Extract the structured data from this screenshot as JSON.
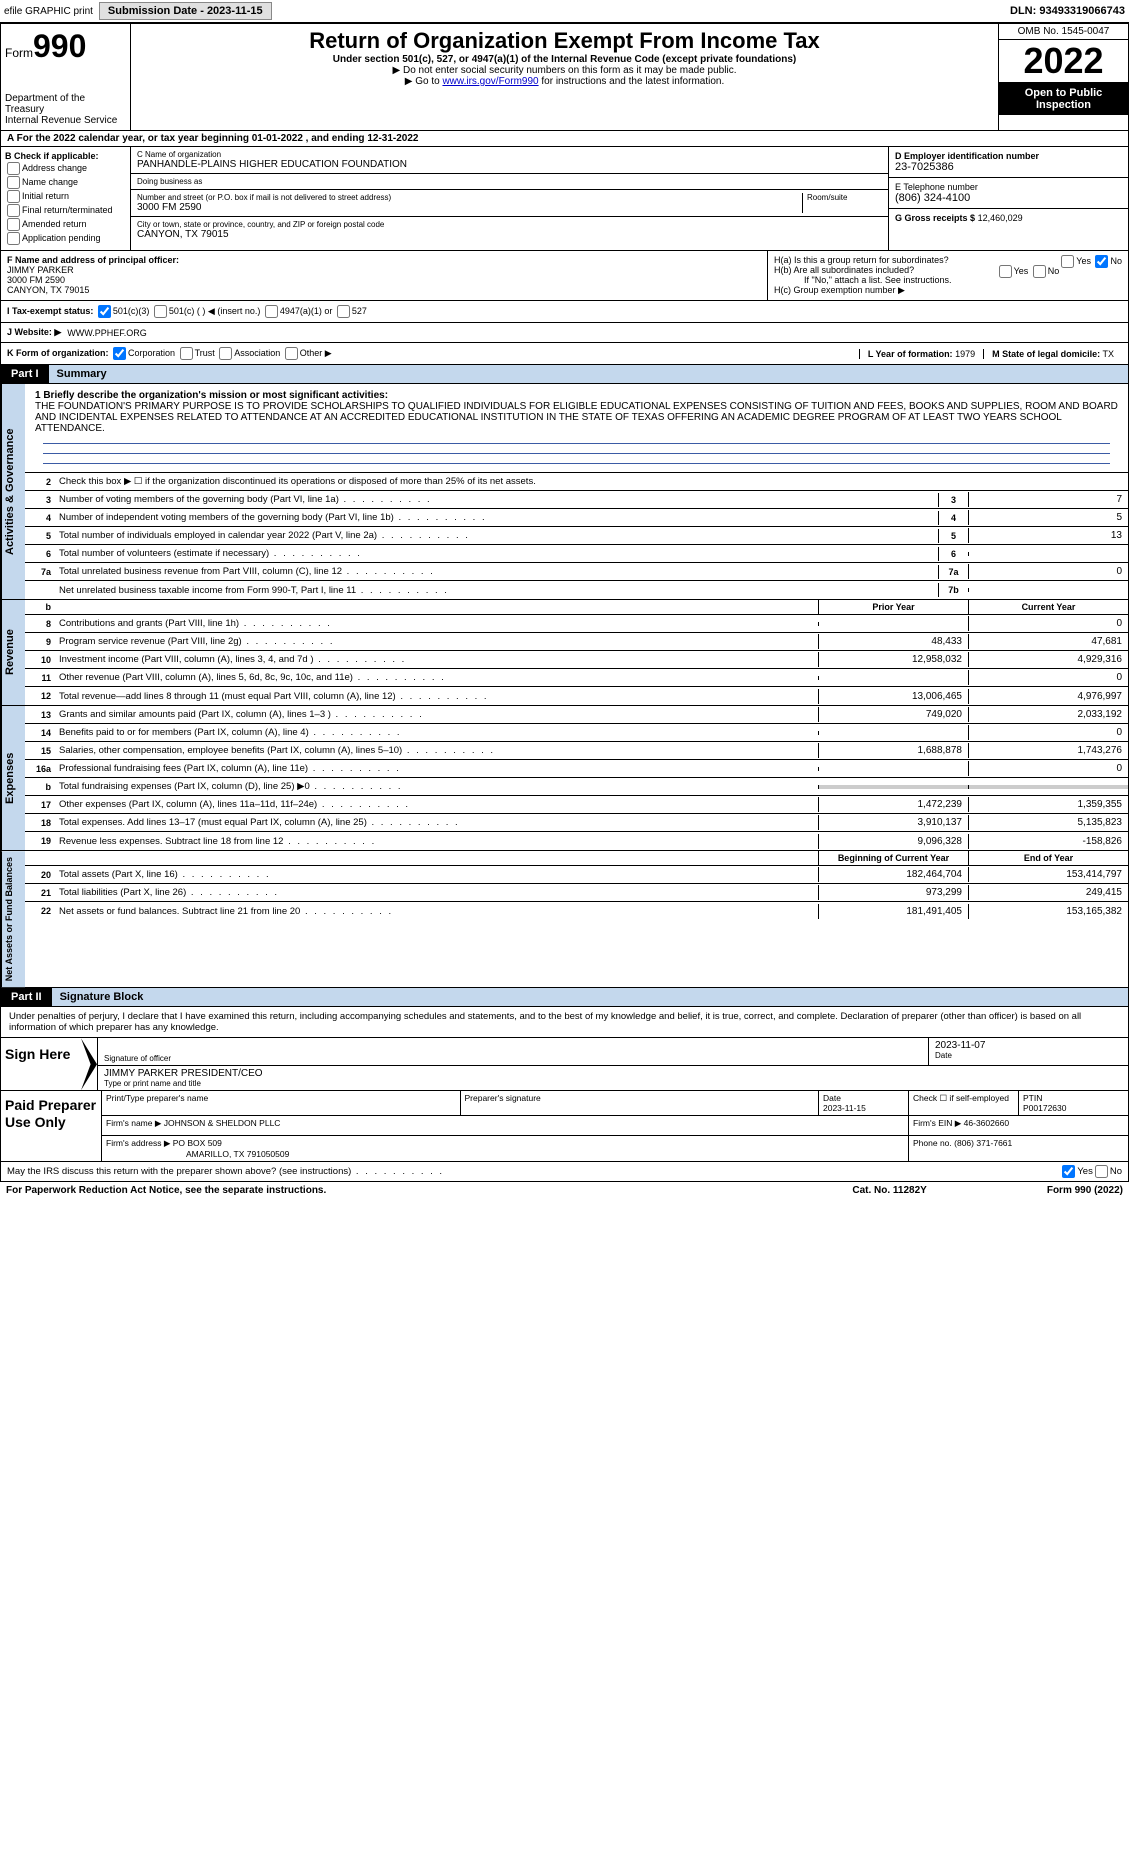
{
  "top": {
    "efile": "efile GRAPHIC print",
    "submission": "Submission Date - 2023-11-15",
    "dln": "DLN: 93493319066743"
  },
  "header": {
    "form_label": "Form",
    "form_num": "990",
    "title": "Return of Organization Exempt From Income Tax",
    "subtitle": "Under section 501(c), 527, or 4947(a)(1) of the Internal Revenue Code (except private foundations)",
    "note1": "▶ Do not enter social security numbers on this form as it may be made public.",
    "note2_pre": "▶ Go to ",
    "note2_link": "www.irs.gov/Form990",
    "note2_post": " for instructions and the latest information.",
    "dept": "Department of the Treasury",
    "irs": "Internal Revenue Service",
    "omb": "OMB No. 1545-0047",
    "year": "2022",
    "open": "Open to Public Inspection"
  },
  "A": "A For the 2022 calendar year, or tax year beginning 01-01-2022   , and ending 12-31-2022",
  "B": {
    "label": "B Check if applicable:",
    "opts": [
      "Address change",
      "Name change",
      "Initial return",
      "Final return/terminated",
      "Amended return",
      "Application pending"
    ]
  },
  "C": {
    "name_lbl": "C Name of organization",
    "name": "PANHANDLE-PLAINS HIGHER EDUCATION FOUNDATION",
    "dba_lbl": "Doing business as",
    "dba": "",
    "street_lbl": "Number and street (or P.O. box if mail is not delivered to street address)",
    "street": "3000 FM 2590",
    "room_lbl": "Room/suite",
    "city_lbl": "City or town, state or province, country, and ZIP or foreign postal code",
    "city": "CANYON, TX  79015"
  },
  "D": {
    "lbl": "D Employer identification number",
    "val": "23-7025386"
  },
  "E": {
    "lbl": "E Telephone number",
    "val": "(806) 324-4100"
  },
  "G": {
    "lbl": "G Gross receipts $",
    "val": "12,460,029"
  },
  "F": {
    "lbl": "F  Name and address of principal officer:",
    "name": "JIMMY PARKER",
    "street": "3000 FM 2590",
    "city": "CANYON, TX  79015"
  },
  "H": {
    "a": "H(a)  Is this a group return for subordinates?",
    "b": "H(b)  Are all subordinates included?",
    "b_note": "If \"No,\" attach a list. See instructions.",
    "c": "H(c)  Group exemption number ▶"
  },
  "I": {
    "lbl": "I    Tax-exempt status:",
    "o1": "501(c)(3)",
    "o2": "501(c) (  ) ◀ (insert no.)",
    "o3": "4947(a)(1) or",
    "o4": "527"
  },
  "J": {
    "lbl": "J   Website: ▶",
    "val": "WWW.PPHEF.ORG"
  },
  "K": {
    "lbl": "K Form of organization:",
    "opts": [
      "Corporation",
      "Trust",
      "Association",
      "Other ▶"
    ]
  },
  "L": {
    "lbl": "L Year of formation:",
    "val": "1979"
  },
  "M": {
    "lbl": "M State of legal domicile:",
    "val": "TX"
  },
  "part1": {
    "hdr": "Part I",
    "title": "Summary"
  },
  "mission": {
    "lbl": "1   Briefly describe the organization's mission or most significant activities:",
    "text": "THE FOUNDATION'S PRIMARY PURPOSE IS TO PROVIDE SCHOLARSHIPS TO QUALIFIED INDIVIDUALS FOR ELIGIBLE EDUCATIONAL EXPENSES CONSISTING OF TUITION AND FEES, BOOKS AND SUPPLIES, ROOM AND BOARD AND INCIDENTAL EXPENSES RELATED TO ATTENDANCE AT AN ACCREDITED EDUCATIONAL INSTITUTION IN THE STATE OF TEXAS OFFERING AN ACADEMIC DEGREE PROGRAM OF AT LEAST TWO YEARS SCHOOL ATTENDANCE."
  },
  "gov": {
    "l2": "Check this box ▶ ☐  if the organization discontinued its operations or disposed of more than 25% of its net assets.",
    "lines": [
      {
        "n": "3",
        "t": "Number of voting members of the governing body (Part VI, line 1a)",
        "box": "3",
        "v": "7"
      },
      {
        "n": "4",
        "t": "Number of independent voting members of the governing body (Part VI, line 1b)",
        "box": "4",
        "v": "5"
      },
      {
        "n": "5",
        "t": "Total number of individuals employed in calendar year 2022 (Part V, line 2a)",
        "box": "5",
        "v": "13"
      },
      {
        "n": "6",
        "t": "Total number of volunteers (estimate if necessary)",
        "box": "6",
        "v": ""
      },
      {
        "n": "7a",
        "t": "Total unrelated business revenue from Part VIII, column (C), line 12",
        "box": "7a",
        "v": "0"
      },
      {
        "n": "",
        "t": "Net unrelated business taxable income from Form 990-T, Part I, line 11",
        "box": "7b",
        "v": ""
      }
    ]
  },
  "rev_hdr": {
    "prior": "Prior Year",
    "current": "Current Year"
  },
  "rev": [
    {
      "n": "8",
      "t": "Contributions and grants (Part VIII, line 1h)",
      "p": "",
      "c": "0"
    },
    {
      "n": "9",
      "t": "Program service revenue (Part VIII, line 2g)",
      "p": "48,433",
      "c": "47,681"
    },
    {
      "n": "10",
      "t": "Investment income (Part VIII, column (A), lines 3, 4, and 7d )",
      "p": "12,958,032",
      "c": "4,929,316"
    },
    {
      "n": "11",
      "t": "Other revenue (Part VIII, column (A), lines 5, 6d, 8c, 9c, 10c, and 11e)",
      "p": "",
      "c": "0"
    },
    {
      "n": "12",
      "t": "Total revenue—add lines 8 through 11 (must equal Part VIII, column (A), line 12)",
      "p": "13,006,465",
      "c": "4,976,997"
    }
  ],
  "exp": [
    {
      "n": "13",
      "t": "Grants and similar amounts paid (Part IX, column (A), lines 1–3 )",
      "p": "749,020",
      "c": "2,033,192"
    },
    {
      "n": "14",
      "t": "Benefits paid to or for members (Part IX, column (A), line 4)",
      "p": "",
      "c": "0"
    },
    {
      "n": "15",
      "t": "Salaries, other compensation, employee benefits (Part IX, column (A), lines 5–10)",
      "p": "1,688,878",
      "c": "1,743,276"
    },
    {
      "n": "16a",
      "t": "Professional fundraising fees (Part IX, column (A), line 11e)",
      "p": "",
      "c": "0"
    },
    {
      "n": "b",
      "t": "Total fundraising expenses (Part IX, column (D), line 25) ▶0",
      "p": "shade",
      "c": "shade"
    },
    {
      "n": "17",
      "t": "Other expenses (Part IX, column (A), lines 11a–11d, 11f–24e)",
      "p": "1,472,239",
      "c": "1,359,355"
    },
    {
      "n": "18",
      "t": "Total expenses. Add lines 13–17 (must equal Part IX, column (A), line 25)",
      "p": "3,910,137",
      "c": "5,135,823"
    },
    {
      "n": "19",
      "t": "Revenue less expenses. Subtract line 18 from line 12",
      "p": "9,096,328",
      "c": "-158,826"
    }
  ],
  "na_hdr": {
    "prior": "Beginning of Current Year",
    "current": "End of Year"
  },
  "na": [
    {
      "n": "20",
      "t": "Total assets (Part X, line 16)",
      "p": "182,464,704",
      "c": "153,414,797"
    },
    {
      "n": "21",
      "t": "Total liabilities (Part X, line 26)",
      "p": "973,299",
      "c": "249,415"
    },
    {
      "n": "22",
      "t": "Net assets or fund balances. Subtract line 21 from line 20",
      "p": "181,491,405",
      "c": "153,165,382"
    }
  ],
  "part2": {
    "hdr": "Part II",
    "title": "Signature Block"
  },
  "sig": {
    "declare": "Under penalties of perjury, I declare that I have examined this return, including accompanying schedules and statements, and to the best of my knowledge and belief, it is true, correct, and complete. Declaration of preparer (other than officer) is based on all information of which preparer has any knowledge.",
    "sign_here": "Sign Here",
    "sig_lbl": "Signature of officer",
    "date": "2023-11-07",
    "date_lbl": "Date",
    "name": "JIMMY PARKER  PRESIDENT/CEO",
    "name_lbl": "Type or print name and title"
  },
  "prep": {
    "label": "Paid Preparer Use Only",
    "h1": "Print/Type preparer's name",
    "h2": "Preparer's signature",
    "h3": "Date",
    "d": "2023-11-15",
    "h4": "Check ☐ if self-employed",
    "h5": "PTIN",
    "ptin": "P00172630",
    "firm_lbl": "Firm's name    ▶",
    "firm": "JOHNSON & SHELDON PLLC",
    "ein_lbl": "Firm's EIN ▶",
    "ein": "46-3602660",
    "addr_lbl": "Firm's address ▶",
    "addr": "PO BOX 509",
    "addr2": "AMARILLO, TX  791050509",
    "phone_lbl": "Phone no.",
    "phone": "(806) 371-7661"
  },
  "footer": {
    "discuss": "May the IRS discuss this return with the preparer shown above? (see instructions)",
    "paperwork": "For Paperwork Reduction Act Notice, see the separate instructions.",
    "cat": "Cat. No. 11282Y",
    "form": "Form 990 (2022)"
  },
  "labels": {
    "vert_gov": "Activities & Governance",
    "vert_rev": "Revenue",
    "vert_exp": "Expenses",
    "vert_na": "Net Assets or Fund Balances",
    "yes": "Yes",
    "no": "No"
  }
}
